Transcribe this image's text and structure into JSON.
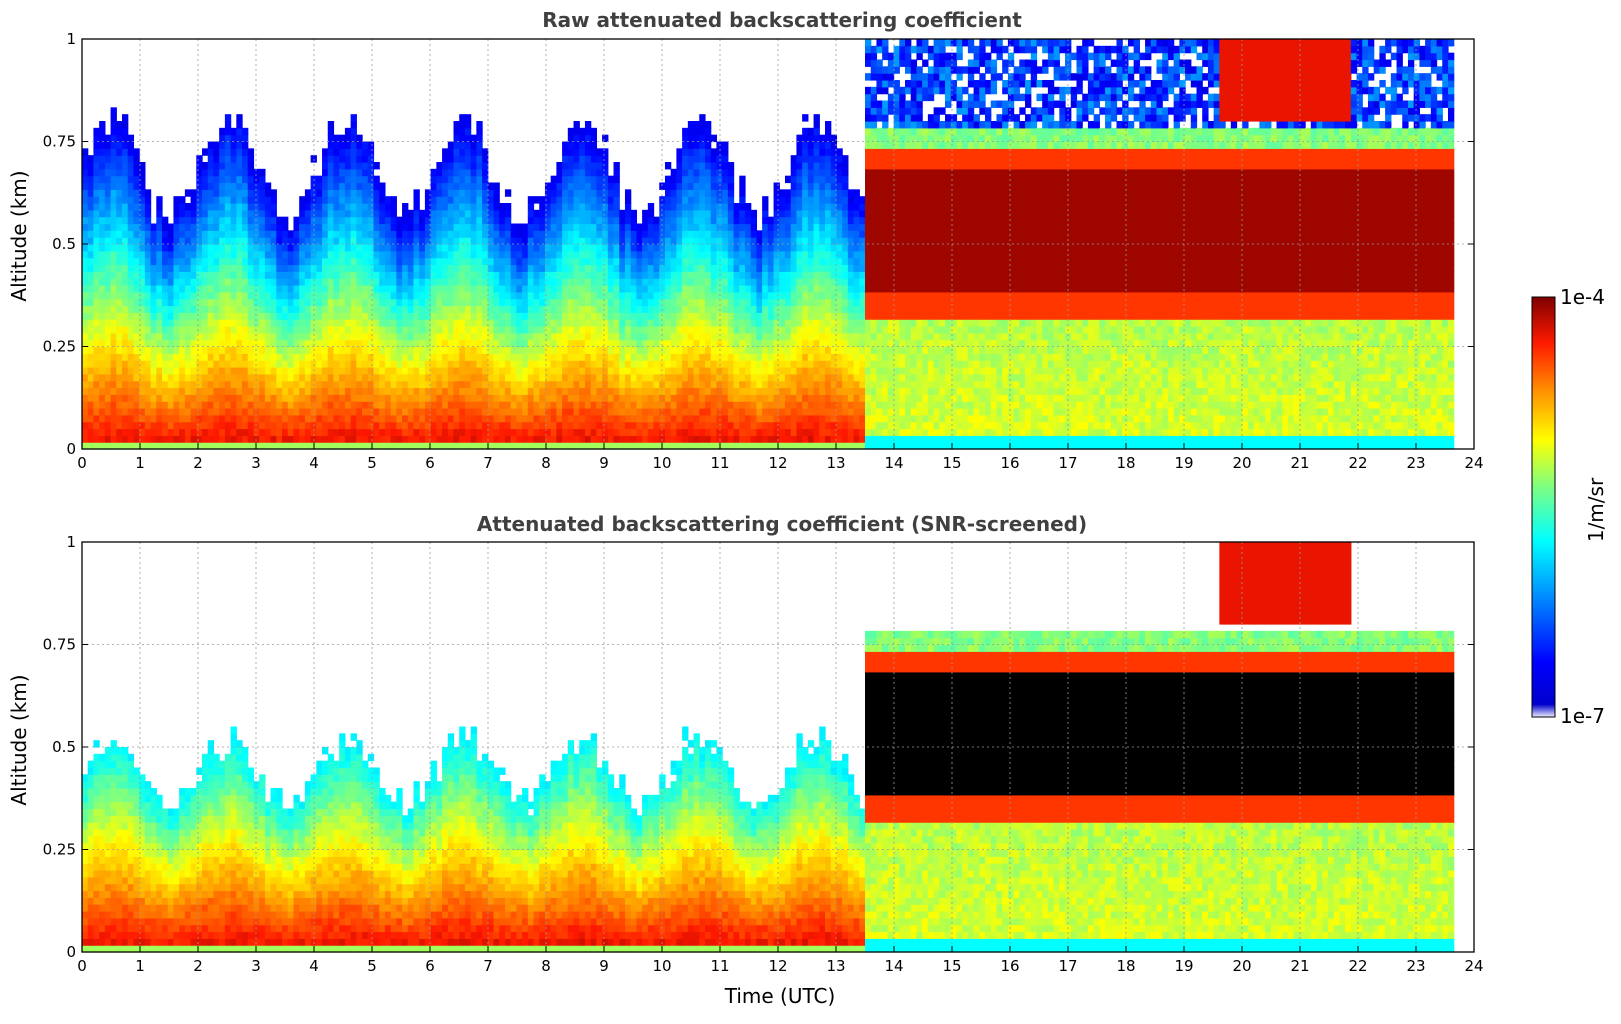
{
  "chart_data": [
    {
      "type": "heatmap",
      "title": "Raw attenuated backscattering coefficient",
      "xlabel": "",
      "ylabel": "Altitude (km)",
      "xlim": [
        0,
        24
      ],
      "ylim": [
        0,
        1
      ],
      "xticks": [
        "0",
        "1",
        "2",
        "3",
        "4",
        "5",
        "6",
        "7",
        "8",
        "9",
        "10",
        "11",
        "12",
        "13",
        "14",
        "15",
        "16",
        "17",
        "18",
        "19",
        "20",
        "21",
        "22",
        "23",
        "24"
      ],
      "yticks": [
        "0",
        "0.25",
        "0.5",
        "0.75",
        "1"
      ],
      "grid": true,
      "screened": false,
      "data_end_hour": 23.65,
      "layers": [
        {
          "name": "surface layer",
          "t_start": 0,
          "t_end": 13.5,
          "base_km": 0,
          "top_km": 0.45,
          "intensity": "high"
        },
        {
          "name": "elevated layer",
          "t_start": 13.5,
          "t_end": 23.65,
          "base_km": 0.38,
          "top_km": 0.68,
          "intensity": "very high"
        },
        {
          "name": "upper cloud",
          "t_start": 19.6,
          "t_end": 21.9,
          "base_km": 0.8,
          "top_km": 1.0,
          "intensity": "high"
        }
      ]
    },
    {
      "type": "heatmap",
      "title": "Attenuated backscattering coefficient (SNR-screened)",
      "xlabel": "Time (UTC)",
      "ylabel": "Altitude (km)",
      "xlim": [
        0,
        24
      ],
      "ylim": [
        0,
        1
      ],
      "xticks": [
        "0",
        "1",
        "2",
        "3",
        "4",
        "5",
        "6",
        "7",
        "8",
        "9",
        "10",
        "11",
        "12",
        "13",
        "14",
        "15",
        "16",
        "17",
        "18",
        "19",
        "20",
        "21",
        "22",
        "23",
        "24"
      ],
      "yticks": [
        "0",
        "0.25",
        "0.5",
        "0.75",
        "1"
      ],
      "grid": true,
      "screened": true,
      "data_end_hour": 23.65,
      "layers": [
        {
          "name": "surface layer",
          "t_start": 0,
          "t_end": 13.5,
          "base_km": 0,
          "top_km": 0.45,
          "intensity": "high"
        },
        {
          "name": "elevated layer",
          "t_start": 13.5,
          "t_end": 23.65,
          "base_km": 0.38,
          "top_km": 0.68,
          "intensity": "saturated"
        },
        {
          "name": "upper cloud",
          "t_start": 19.6,
          "t_end": 21.9,
          "base_km": 0.8,
          "top_km": 1.0,
          "intensity": "high"
        }
      ]
    }
  ],
  "colorbar": {
    "label": "1/m/sr",
    "max_label": "1e-4",
    "min_label": "1e-7",
    "colormap": [
      "#00007f",
      "#0000ff",
      "#007fff",
      "#00ffff",
      "#7fff7f",
      "#ffff00",
      "#ff7f00",
      "#ff0000",
      "#7f0000"
    ]
  }
}
